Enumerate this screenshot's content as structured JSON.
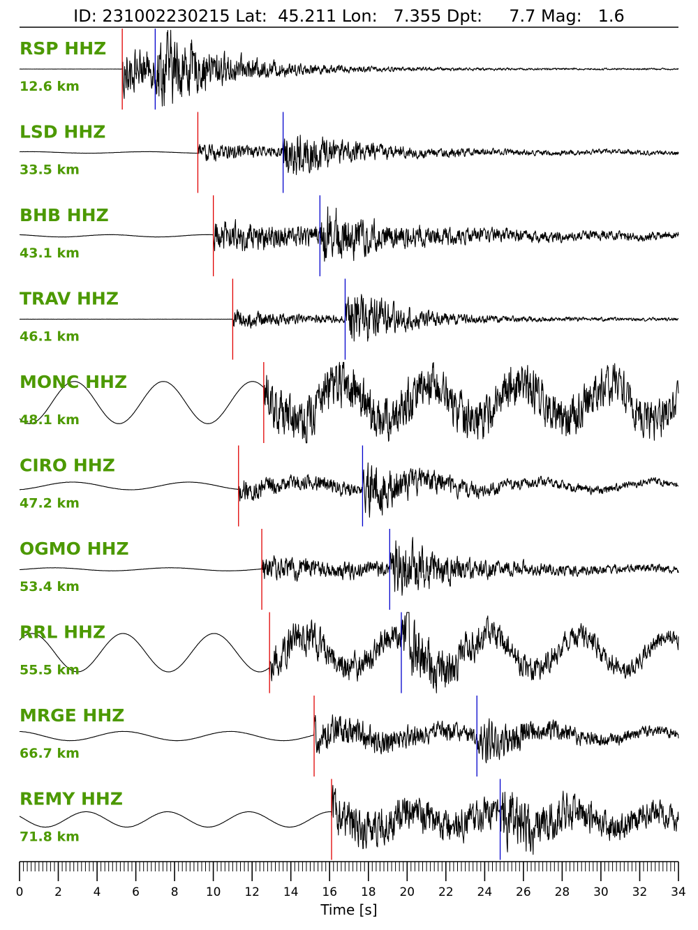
{
  "chart_data": {
    "type": "line",
    "title": "ID: 231002230215 Lat:  45.211 Lon:   7.355 Dpt:     7.7 Mag:   1.6",
    "xlabel": "Time [s]",
    "xlim": [
      0,
      34
    ],
    "x_major_ticks": [
      "0",
      "2",
      "4",
      "6",
      "8",
      "10",
      "12",
      "14",
      "16",
      "18",
      "20",
      "22",
      "24",
      "26",
      "28",
      "30",
      "32",
      "34"
    ],
    "label_color": "#4c9900",
    "trace_color": "#000000",
    "p_pick_color": "#e00000",
    "s_pick_color": "#0000cc",
    "traces": [
      {
        "station": "RSP HHZ",
        "distance": "12.6 km",
        "p_pick": 5.3,
        "s_pick": 7.0,
        "onset_amp": 0.85,
        "env_decay": 5.0,
        "noise_lf": 0.0,
        "lf_period": 8.0,
        "s_gain": 1.1,
        "tail": 0.03
      },
      {
        "station": "LSD HHZ",
        "distance": "33.5 km",
        "p_pick": 9.2,
        "s_pick": 13.6,
        "onset_amp": 0.25,
        "env_decay": 7.0,
        "noise_lf": 0.02,
        "lf_period": 6.0,
        "s_gain": 0.95,
        "tail": 0.08
      },
      {
        "station": "BHB HHZ",
        "distance": "43.1 km",
        "p_pick": 10.0,
        "s_pick": 15.5,
        "onset_amp": 0.45,
        "env_decay": 10.0,
        "noise_lf": 0.03,
        "lf_period": 5.0,
        "s_gain": 0.9,
        "tail": 0.12
      },
      {
        "station": "TRAV HHZ",
        "distance": "46.1 km",
        "p_pick": 11.0,
        "s_pick": 16.8,
        "onset_amp": 0.3,
        "env_decay": 4.0,
        "noise_lf": 0.0,
        "lf_period": 6.0,
        "s_gain": 1.2,
        "tail": 0.06
      },
      {
        "station": "MONC HHZ",
        "distance": "48.1 km",
        "p_pick": 12.6,
        "s_pick": null,
        "onset_amp": 0.5,
        "env_decay": 40.0,
        "noise_lf": 0.55,
        "lf_period": 4.6,
        "s_gain": 0.0,
        "tail": 0.55
      },
      {
        "station": "CIRO HHZ",
        "distance": "47.2 km",
        "p_pick": 11.3,
        "s_pick": 17.7,
        "onset_amp": 0.3,
        "env_decay": 8.0,
        "noise_lf": 0.1,
        "lf_period": 6.0,
        "s_gain": 1.0,
        "tail": 0.12
      },
      {
        "station": "OGMO HHZ",
        "distance": "53.4 km",
        "p_pick": 12.5,
        "s_pick": 19.1,
        "onset_amp": 0.35,
        "env_decay": 8.0,
        "noise_lf": 0.04,
        "lf_period": 6.0,
        "s_gain": 1.05,
        "tail": 0.12
      },
      {
        "station": "RRL HHZ",
        "distance": "55.5 km",
        "p_pick": 12.9,
        "s_pick": 19.7,
        "onset_amp": 0.45,
        "env_decay": 9.0,
        "noise_lf": 0.5,
        "lf_period": 4.7,
        "s_gain": 1.0,
        "tail": 0.35
      },
      {
        "station": "MRGE HHZ",
        "distance": "66.7 km",
        "p_pick": 15.2,
        "s_pick": 23.6,
        "onset_amp": 0.55,
        "env_decay": 7.0,
        "noise_lf": 0.12,
        "lf_period": 5.5,
        "s_gain": 0.6,
        "tail": 0.15
      },
      {
        "station": "REMY HHZ",
        "distance": "71.8 km",
        "p_pick": 16.1,
        "s_pick": 24.8,
        "onset_amp": 0.55,
        "env_decay": 12.0,
        "noise_lf": 0.2,
        "lf_period": 4.2,
        "s_gain": 0.8,
        "tail": 0.3
      }
    ]
  }
}
